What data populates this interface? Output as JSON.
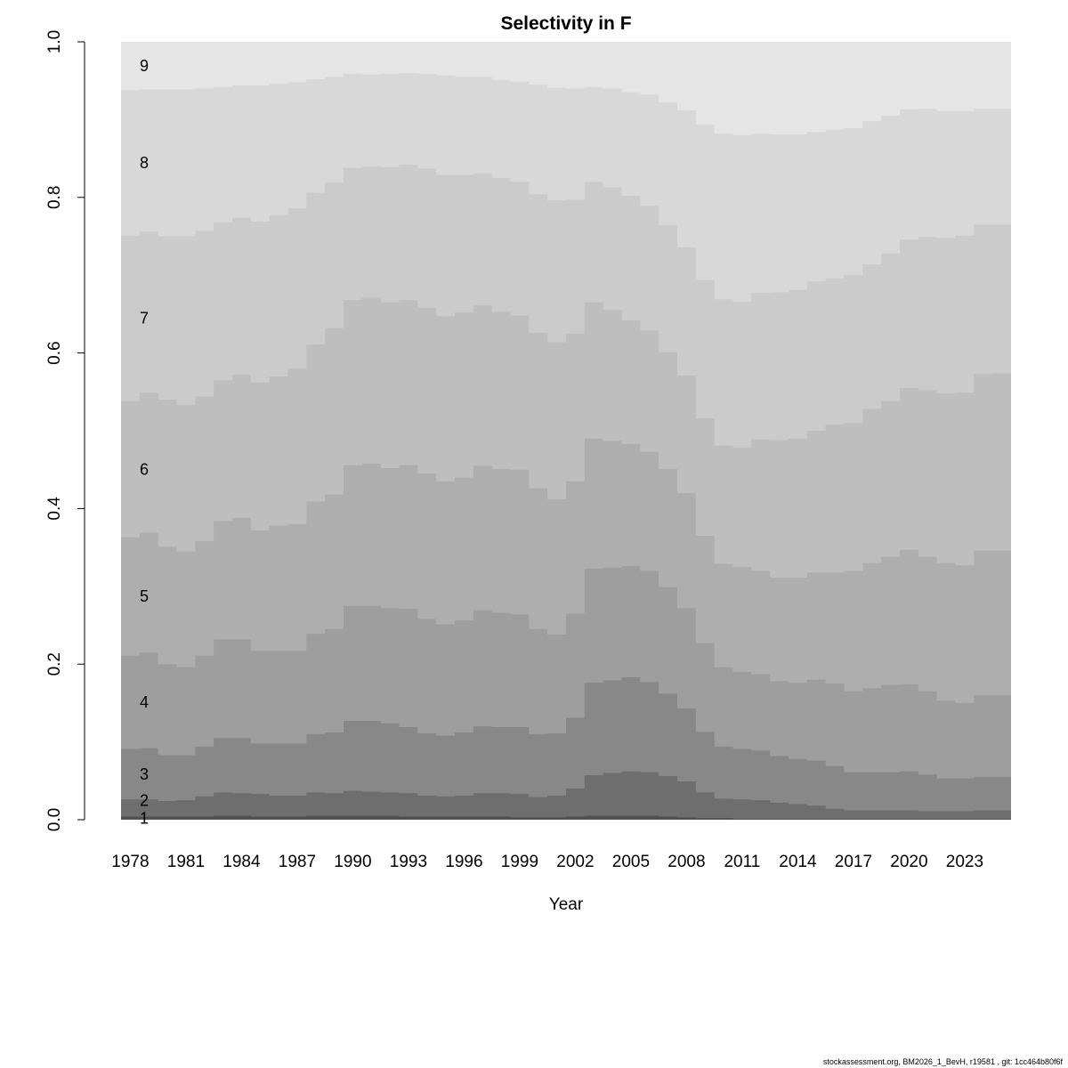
{
  "chart_data": {
    "type": "area",
    "stacked": true,
    "step": true,
    "title": "Selectivity in F",
    "xlabel": "Year",
    "ylabel": "",
    "ylim": [
      0,
      1
    ],
    "yticks": [
      "0.0",
      "0.2",
      "0.4",
      "0.6",
      "0.8",
      "1.0"
    ],
    "xtick_labels": [
      "1978",
      "1981",
      "1984",
      "1987",
      "1990",
      "1993",
      "1996",
      "1999",
      "2002",
      "2005",
      "2008",
      "2011",
      "2014",
      "2017",
      "2020",
      "2023"
    ],
    "grid": false,
    "legend": "none (ages labelled inside bands at left)",
    "x_first": 1978,
    "x_last": 2025,
    "band_labels": [
      "1",
      "2",
      "3",
      "4",
      "5",
      "6",
      "7",
      "8",
      "9"
    ],
    "band_colors": [
      "#505050",
      "#6e6e6e",
      "#888888",
      "#9e9e9e",
      "#aeaeae",
      "#bebebe",
      "#cbcbcb",
      "#d8d8d8",
      "#e5e5e5"
    ],
    "cumulative_upper_bounds": [
      {
        "age": "1",
        "values": [
          0.004,
          0.004,
          0.004,
          0.004,
          0.004,
          0.005,
          0.005,
          0.004,
          0.004,
          0.004,
          0.005,
          0.005,
          0.005,
          0.005,
          0.005,
          0.004,
          0.004,
          0.004,
          0.004,
          0.004,
          0.004,
          0.003,
          0.003,
          0.003,
          0.004,
          0.005,
          0.005,
          0.005,
          0.005,
          0.004,
          0.003,
          0.002,
          0.002,
          0.001,
          0.001,
          0.001,
          0.001,
          0.001,
          0.001,
          0.001,
          0.001,
          0.001,
          0.001,
          0.001,
          0.001,
          0.001,
          0.001,
          0.001
        ]
      },
      {
        "age": "2",
        "values": [
          0.026,
          0.026,
          0.024,
          0.025,
          0.03,
          0.035,
          0.034,
          0.033,
          0.031,
          0.031,
          0.035,
          0.034,
          0.037,
          0.036,
          0.035,
          0.034,
          0.031,
          0.03,
          0.031,
          0.034,
          0.034,
          0.033,
          0.029,
          0.031,
          0.04,
          0.057,
          0.06,
          0.062,
          0.061,
          0.056,
          0.049,
          0.035,
          0.027,
          0.026,
          0.025,
          0.022,
          0.02,
          0.018,
          0.014,
          0.012,
          0.012,
          0.012,
          0.012,
          0.011,
          0.011,
          0.011,
          0.012,
          0.012
        ]
      },
      {
        "age": "3",
        "values": [
          0.091,
          0.092,
          0.083,
          0.083,
          0.094,
          0.105,
          0.105,
          0.098,
          0.098,
          0.098,
          0.11,
          0.112,
          0.127,
          0.127,
          0.124,
          0.119,
          0.111,
          0.108,
          0.112,
          0.12,
          0.119,
          0.119,
          0.11,
          0.111,
          0.131,
          0.176,
          0.179,
          0.183,
          0.177,
          0.162,
          0.143,
          0.113,
          0.094,
          0.091,
          0.089,
          0.082,
          0.078,
          0.076,
          0.069,
          0.061,
          0.061,
          0.061,
          0.062,
          0.058,
          0.053,
          0.053,
          0.055,
          0.055
        ]
      },
      {
        "age": "4",
        "values": [
          0.211,
          0.215,
          0.2,
          0.196,
          0.211,
          0.232,
          0.232,
          0.217,
          0.217,
          0.217,
          0.239,
          0.245,
          0.275,
          0.275,
          0.272,
          0.271,
          0.258,
          0.251,
          0.256,
          0.269,
          0.266,
          0.264,
          0.245,
          0.238,
          0.265,
          0.323,
          0.324,
          0.326,
          0.32,
          0.299,
          0.272,
          0.227,
          0.196,
          0.19,
          0.187,
          0.178,
          0.176,
          0.18,
          0.175,
          0.165,
          0.169,
          0.173,
          0.174,
          0.165,
          0.153,
          0.15,
          0.16,
          0.16
        ]
      },
      {
        "age": "5",
        "values": [
          0.363,
          0.369,
          0.351,
          0.345,
          0.358,
          0.384,
          0.388,
          0.372,
          0.378,
          0.38,
          0.409,
          0.418,
          0.456,
          0.458,
          0.452,
          0.456,
          0.445,
          0.435,
          0.44,
          0.455,
          0.451,
          0.45,
          0.426,
          0.412,
          0.435,
          0.49,
          0.487,
          0.483,
          0.473,
          0.451,
          0.42,
          0.365,
          0.329,
          0.325,
          0.32,
          0.311,
          0.311,
          0.318,
          0.318,
          0.32,
          0.33,
          0.338,
          0.347,
          0.338,
          0.33,
          0.327,
          0.346,
          0.346
        ]
      },
      {
        "age": "6",
        "values": [
          0.538,
          0.549,
          0.54,
          0.533,
          0.544,
          0.565,
          0.572,
          0.562,
          0.57,
          0.58,
          0.611,
          0.632,
          0.668,
          0.671,
          0.665,
          0.668,
          0.658,
          0.647,
          0.652,
          0.661,
          0.653,
          0.648,
          0.626,
          0.614,
          0.625,
          0.665,
          0.655,
          0.642,
          0.629,
          0.601,
          0.571,
          0.516,
          0.481,
          0.478,
          0.489,
          0.488,
          0.49,
          0.5,
          0.508,
          0.51,
          0.528,
          0.538,
          0.555,
          0.552,
          0.548,
          0.549,
          0.573,
          0.574
        ]
      },
      {
        "age": "7",
        "values": [
          0.751,
          0.756,
          0.75,
          0.75,
          0.757,
          0.768,
          0.774,
          0.769,
          0.777,
          0.786,
          0.806,
          0.819,
          0.838,
          0.84,
          0.839,
          0.842,
          0.837,
          0.829,
          0.829,
          0.831,
          0.825,
          0.82,
          0.804,
          0.796,
          0.797,
          0.82,
          0.813,
          0.802,
          0.789,
          0.764,
          0.736,
          0.694,
          0.669,
          0.666,
          0.677,
          0.678,
          0.681,
          0.692,
          0.696,
          0.7,
          0.714,
          0.728,
          0.746,
          0.749,
          0.748,
          0.751,
          0.765,
          0.765
        ]
      },
      {
        "age": "8",
        "values": [
          0.938,
          0.939,
          0.939,
          0.939,
          0.94,
          0.942,
          0.944,
          0.944,
          0.946,
          0.948,
          0.952,
          0.955,
          0.959,
          0.958,
          0.959,
          0.96,
          0.959,
          0.957,
          0.955,
          0.955,
          0.951,
          0.949,
          0.945,
          0.941,
          0.94,
          0.942,
          0.94,
          0.935,
          0.932,
          0.922,
          0.912,
          0.894,
          0.882,
          0.88,
          0.882,
          0.881,
          0.881,
          0.884,
          0.887,
          0.889,
          0.898,
          0.905,
          0.913,
          0.914,
          0.911,
          0.911,
          0.914,
          0.914
        ]
      },
      {
        "age": "9",
        "values": [
          1,
          1,
          1,
          1,
          1,
          1,
          1,
          1,
          1,
          1,
          1,
          1,
          1,
          1,
          1,
          1,
          1,
          1,
          1,
          1,
          1,
          1,
          1,
          1,
          1,
          1,
          1,
          1,
          1,
          1,
          1,
          1,
          1,
          1,
          1,
          1,
          1,
          1,
          1,
          1,
          1,
          1,
          1,
          1,
          1,
          1,
          1,
          1
        ]
      }
    ]
  },
  "footer": "stockassessment.org, BM2026_1_BevH, r19581 , git: 1cc464b80f6f"
}
